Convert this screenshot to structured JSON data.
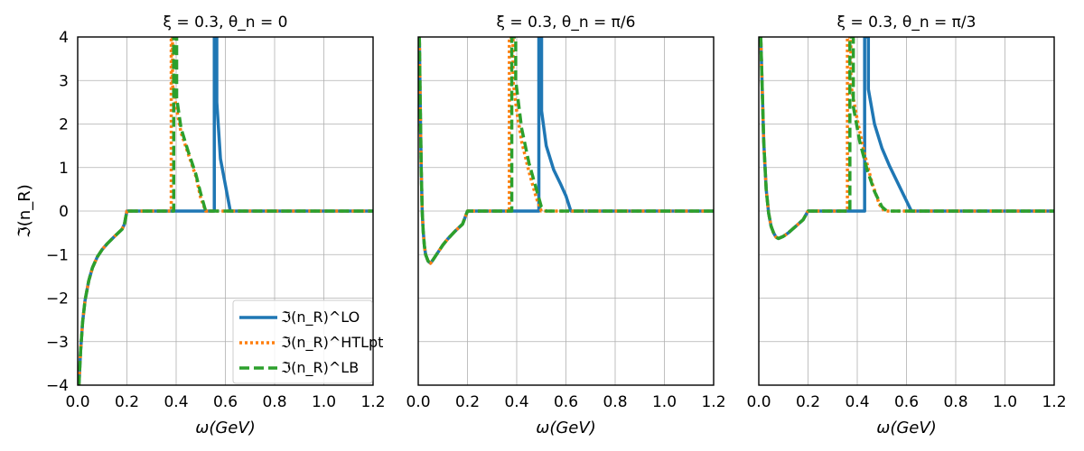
{
  "chart_data": [
    {
      "type": "line",
      "title": "ξ = 0.3,  θ_n = 0",
      "xlabel": "ω(GeV)",
      "ylabel": "ℑ(n_R)",
      "xlim": [
        0,
        1.2
      ],
      "ylim": [
        -4,
        4
      ],
      "xticks": [
        "0.0",
        "0.2",
        "0.4",
        "0.6",
        "0.8",
        "1.0",
        "1.2"
      ],
      "yticks": [
        "−4",
        "−3",
        "−2",
        "−1",
        "0",
        "1",
        "2",
        "3",
        "4"
      ],
      "grid": true,
      "legend": "lower-right",
      "series": [
        {
          "name": "ℑ(n_R)^LO",
          "color": "#1f77b4",
          "style": "solid",
          "x": [
            0.005,
            0.012,
            0.02,
            0.03,
            0.045,
            0.06,
            0.08,
            0.1,
            0.12,
            0.15,
            0.18,
            0.19,
            0.2,
            0.3,
            0.4,
            0.5,
            0.555,
            0.555,
            0.5651,
            0.5651,
            0.58,
            0.6,
            0.62,
            0.62,
            0.8,
            1.0,
            1.2
          ],
          "y": [
            -4.0,
            -3.2,
            -2.55,
            -2.05,
            -1.6,
            -1.3,
            -1.05,
            -0.88,
            -0.75,
            -0.58,
            -0.42,
            -0.3,
            0.0,
            0.0,
            0.0,
            0.0,
            0.0,
            4.0,
            4.0,
            2.5,
            1.2,
            0.6,
            0.0,
            0.0,
            0.0,
            0.0,
            0.0
          ]
        },
        {
          "name": "ℑ(n_R)^HTLpt",
          "color": "#ff7f0e",
          "style": "dotted",
          "x": [
            0.005,
            0.012,
            0.02,
            0.03,
            0.045,
            0.06,
            0.08,
            0.1,
            0.12,
            0.15,
            0.18,
            0.19,
            0.2,
            0.3,
            0.38,
            0.38,
            0.3851,
            0.3851,
            0.4,
            0.42,
            0.45,
            0.48,
            0.5,
            0.52,
            0.55,
            0.8,
            1.0,
            1.2
          ],
          "y": [
            -4.0,
            -3.2,
            -2.55,
            -2.05,
            -1.6,
            -1.3,
            -1.05,
            -0.88,
            -0.75,
            -0.58,
            -0.42,
            -0.3,
            0.0,
            0.0,
            0.0,
            4.0,
            4.0,
            2.9,
            2.4,
            1.8,
            1.3,
            0.8,
            0.3,
            0.0,
            0.0,
            0.0,
            0.0,
            0.0
          ]
        },
        {
          "name": "ℑ(n_R)^LB",
          "color": "#2ca02c",
          "style": "dashed",
          "x": [
            0.005,
            0.012,
            0.02,
            0.03,
            0.045,
            0.06,
            0.08,
            0.1,
            0.12,
            0.15,
            0.18,
            0.19,
            0.2,
            0.3,
            0.39,
            0.39,
            0.402,
            0.402,
            0.42,
            0.45,
            0.48,
            0.5,
            0.52,
            0.55,
            0.8,
            1.0,
            1.2
          ],
          "y": [
            -4.0,
            -3.2,
            -2.55,
            -2.05,
            -1.6,
            -1.3,
            -1.05,
            -0.88,
            -0.75,
            -0.58,
            -0.42,
            -0.3,
            0.0,
            0.0,
            0.0,
            4.0,
            4.0,
            2.6,
            1.9,
            1.35,
            0.85,
            0.4,
            0.0,
            0.0,
            0.0,
            0.0,
            0.0
          ]
        }
      ]
    },
    {
      "type": "line",
      "title": "ξ = 0.3,  θ_n = π/6",
      "xlabel": "ω(GeV)",
      "xlim": [
        0,
        1.2
      ],
      "ylim": [
        -4,
        4
      ],
      "xticks": [
        "0.0",
        "0.2",
        "0.4",
        "0.6",
        "0.8",
        "1.0",
        "1.2"
      ],
      "grid": true,
      "series": [
        {
          "name": "ℑ(n_R)^LO",
          "color": "#1f77b4",
          "style": "solid",
          "x": [
            0.0045,
            0.008,
            0.012,
            0.016,
            0.02,
            0.025,
            0.03,
            0.04,
            0.05,
            0.06,
            0.08,
            0.1,
            0.12,
            0.15,
            0.18,
            0.2,
            0.3,
            0.4,
            0.49,
            0.49,
            0.501,
            0.501,
            0.52,
            0.55,
            0.58,
            0.6,
            0.62,
            0.62,
            0.8,
            1.0,
            1.2
          ],
          "y": [
            4.0,
            2.5,
            1.0,
            0.0,
            -0.45,
            -0.8,
            -1.0,
            -1.15,
            -1.2,
            -1.12,
            -0.95,
            -0.78,
            -0.64,
            -0.46,
            -0.3,
            0.0,
            0.0,
            0.0,
            0.0,
            4.0,
            4.0,
            2.3,
            1.5,
            0.95,
            0.6,
            0.35,
            0.0,
            0.0,
            0.0,
            0.0,
            0.0
          ]
        },
        {
          "name": "ℑ(n_R)^HTLpt",
          "color": "#ff7f0e",
          "style": "dotted",
          "x": [
            0.0045,
            0.008,
            0.012,
            0.016,
            0.02,
            0.025,
            0.03,
            0.04,
            0.05,
            0.06,
            0.08,
            0.1,
            0.12,
            0.15,
            0.18,
            0.2,
            0.3,
            0.37,
            0.37,
            0.3851,
            0.3851,
            0.4,
            0.42,
            0.45,
            0.48,
            0.5,
            0.52,
            0.8,
            1.0,
            1.2
          ],
          "y": [
            4.0,
            2.5,
            1.0,
            0.0,
            -0.45,
            -0.8,
            -1.0,
            -1.15,
            -1.2,
            -1.12,
            -0.95,
            -0.78,
            -0.64,
            -0.46,
            -0.3,
            0.0,
            0.0,
            0.0,
            4.0,
            4.0,
            3.0,
            2.3,
            1.6,
            0.9,
            0.3,
            0.0,
            0.0,
            0.0,
            0.0,
            0.0
          ]
        },
        {
          "name": "ℑ(n_R)^LB",
          "color": "#2ca02c",
          "style": "dashed",
          "x": [
            0.0045,
            0.008,
            0.012,
            0.016,
            0.02,
            0.025,
            0.03,
            0.04,
            0.05,
            0.06,
            0.08,
            0.1,
            0.12,
            0.15,
            0.18,
            0.2,
            0.3,
            0.38,
            0.38,
            0.396,
            0.396,
            0.42,
            0.45,
            0.48,
            0.5,
            0.52,
            0.8,
            1.0,
            1.2
          ],
          "y": [
            4.0,
            2.5,
            1.0,
            0.0,
            -0.45,
            -0.8,
            -1.0,
            -1.15,
            -1.2,
            -1.12,
            -0.95,
            -0.78,
            -0.64,
            -0.46,
            -0.3,
            0.0,
            0.0,
            0.0,
            4.0,
            4.0,
            3.0,
            1.9,
            1.1,
            0.5,
            0.1,
            0.0,
            0.0,
            0.0,
            0.0
          ]
        }
      ]
    },
    {
      "type": "line",
      "title": "ξ = 0.3,  θ_n = π/3",
      "xlabel": "ω(GeV)",
      "xlim": [
        0,
        1.2
      ],
      "ylim": [
        -4,
        4
      ],
      "xticks": [
        "0.0",
        "0.2",
        "0.4",
        "0.6",
        "0.8",
        "1.0",
        "1.2"
      ],
      "grid": true,
      "series": [
        {
          "name": "ℑ(n_R)^LO",
          "color": "#1f77b4",
          "style": "solid",
          "x": [
            0.008,
            0.015,
            0.02,
            0.03,
            0.04,
            0.05,
            0.06,
            0.07,
            0.08,
            0.1,
            0.12,
            0.15,
            0.18,
            0.2,
            0.3,
            0.43,
            0.43,
            0.4451,
            0.4451,
            0.47,
            0.5,
            0.53,
            0.56,
            0.59,
            0.62,
            0.8,
            1.0,
            1.2
          ],
          "y": [
            4.0,
            2.6,
            1.6,
            0.5,
            -0.05,
            -0.35,
            -0.5,
            -0.6,
            -0.63,
            -0.58,
            -0.5,
            -0.35,
            -0.2,
            0.0,
            0.0,
            0.0,
            4.0,
            4.0,
            2.8,
            2.0,
            1.45,
            1.05,
            0.7,
            0.35,
            0.0,
            0.0,
            0.0,
            0.0
          ]
        },
        {
          "name": "ℑ(n_R)^HTLpt",
          "color": "#ff7f0e",
          "style": "dotted",
          "x": [
            0.008,
            0.015,
            0.02,
            0.03,
            0.04,
            0.05,
            0.06,
            0.07,
            0.08,
            0.1,
            0.12,
            0.15,
            0.18,
            0.2,
            0.3,
            0.36,
            0.36,
            0.374,
            0.374,
            0.4,
            0.43,
            0.46,
            0.49,
            0.51,
            0.8,
            1.0,
            1.2
          ],
          "y": [
            4.0,
            2.6,
            1.6,
            0.5,
            -0.05,
            -0.35,
            -0.5,
            -0.6,
            -0.63,
            -0.58,
            -0.5,
            -0.35,
            -0.2,
            0.0,
            0.0,
            0.0,
            4.0,
            4.0,
            2.9,
            2.1,
            1.3,
            0.65,
            0.15,
            0.0,
            0.0,
            0.0,
            0.0
          ]
        },
        {
          "name": "ℑ(n_R)^LB",
          "color": "#2ca02c",
          "style": "dashed",
          "x": [
            0.008,
            0.015,
            0.02,
            0.03,
            0.04,
            0.05,
            0.06,
            0.07,
            0.08,
            0.1,
            0.12,
            0.15,
            0.18,
            0.2,
            0.3,
            0.37,
            0.37,
            0.384,
            0.384,
            0.41,
            0.44,
            0.47,
            0.5,
            0.52,
            0.8,
            1.0,
            1.2
          ],
          "y": [
            4.0,
            2.6,
            1.6,
            0.5,
            -0.05,
            -0.35,
            -0.5,
            -0.6,
            -0.63,
            -0.58,
            -0.5,
            -0.35,
            -0.2,
            0.0,
            0.0,
            0.0,
            4.0,
            4.0,
            2.4,
            1.6,
            0.95,
            0.45,
            0.1,
            0.0,
            0.0,
            0.0,
            0.0
          ]
        }
      ]
    }
  ]
}
